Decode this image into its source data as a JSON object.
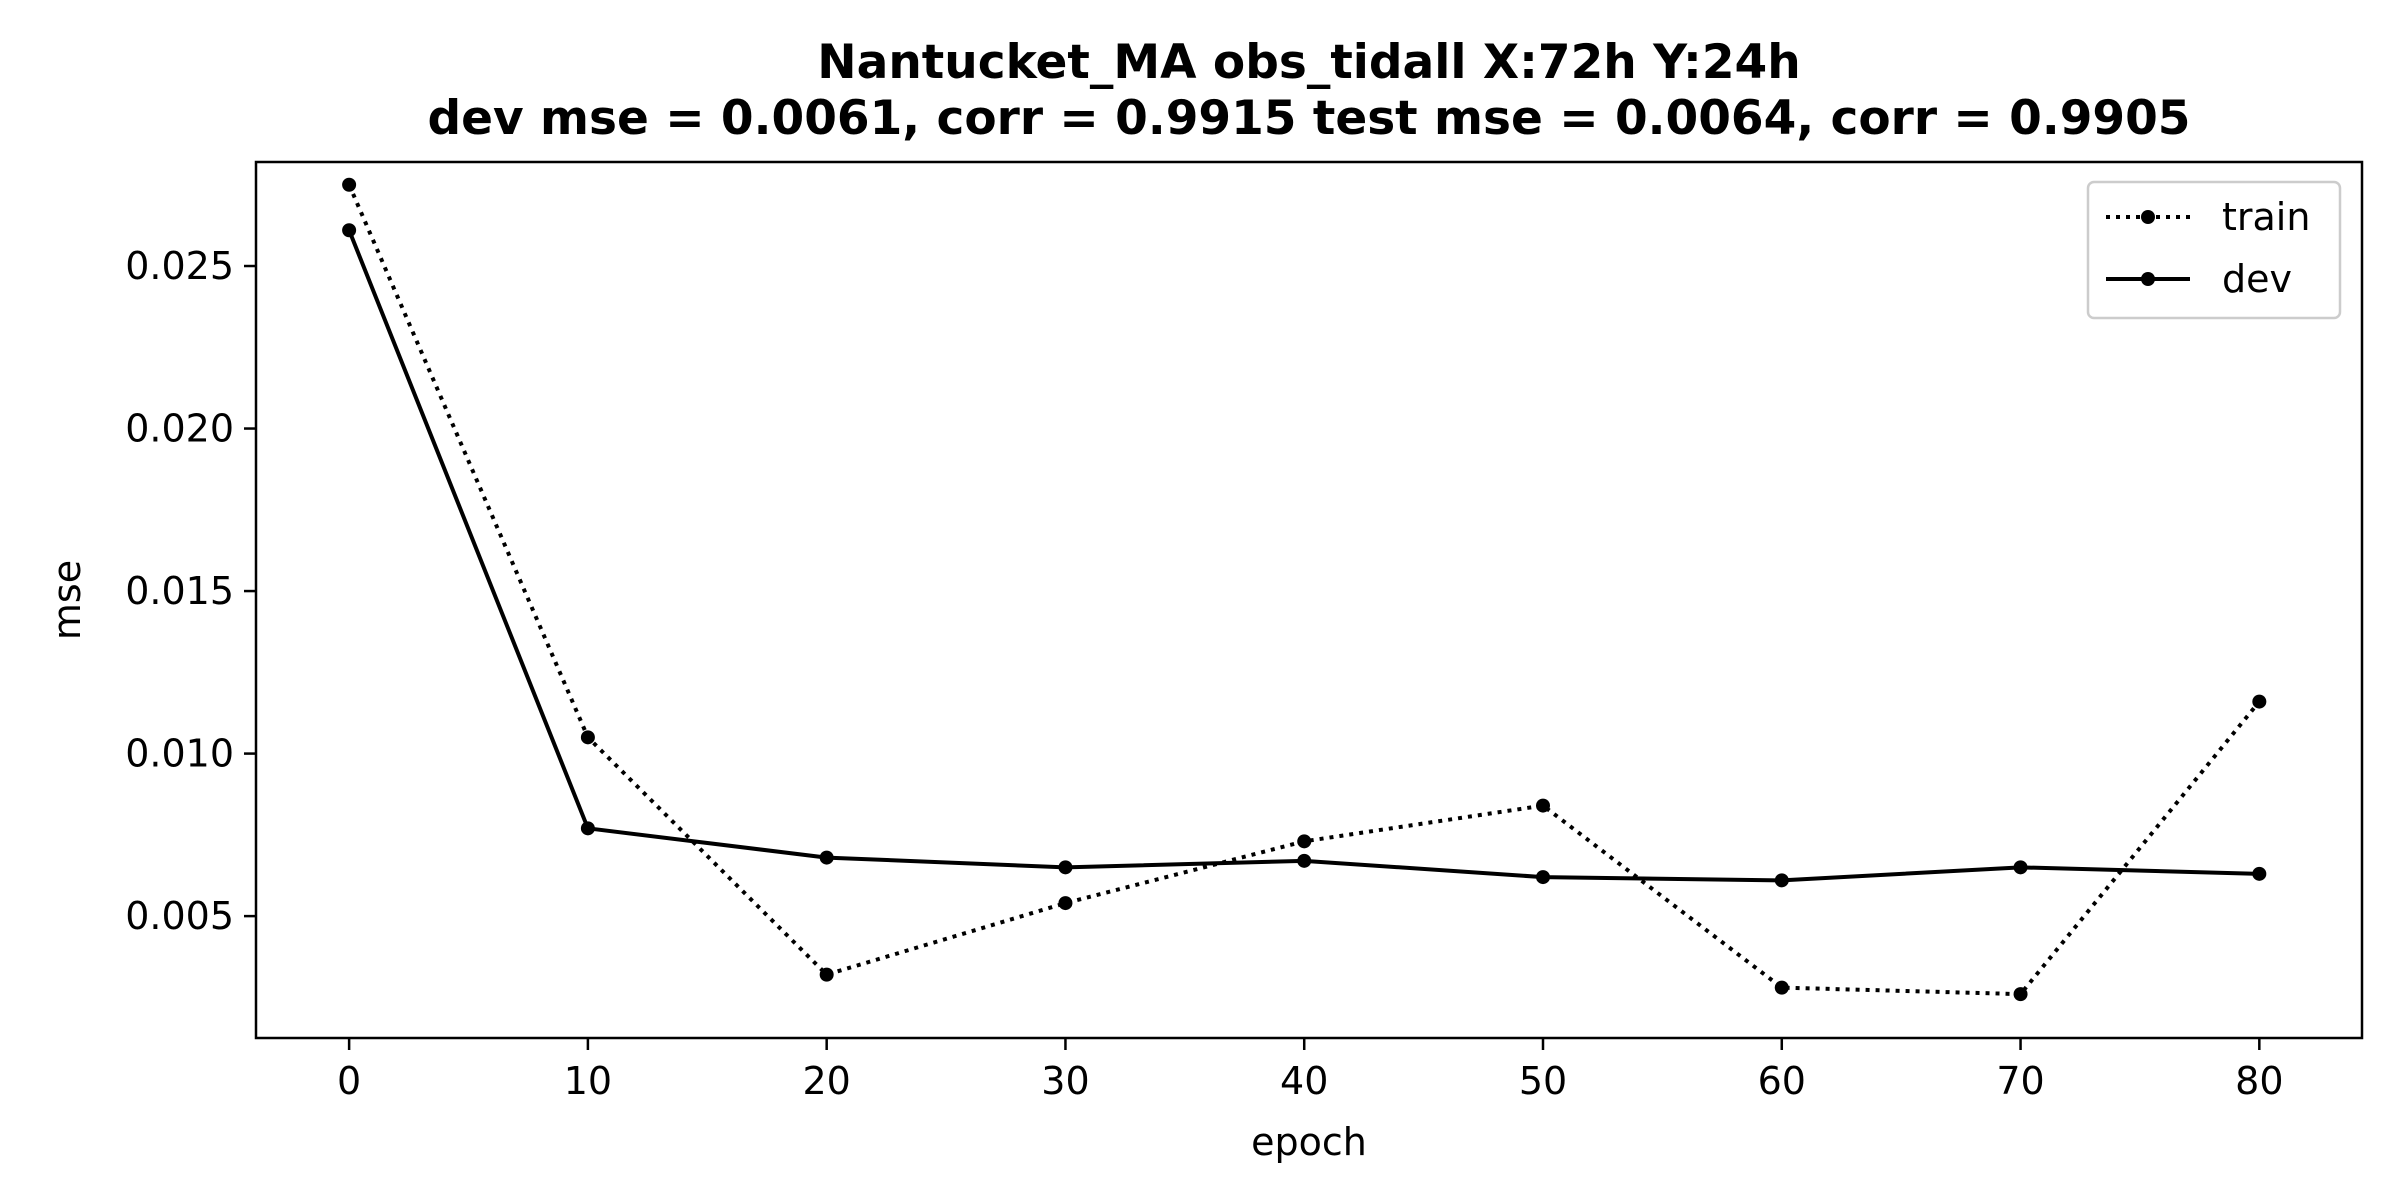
{
  "chart_data": {
    "type": "line",
    "title": "Nantucket_MA   obs_tidall   X:72h   Y:24h",
    "subtitle": "dev mse = 0.0061, corr = 0.9915   test mse = 0.0064, corr = 0.9905",
    "xlabel": "epoch",
    "ylabel": "mse",
    "x": [
      0,
      10,
      20,
      30,
      40,
      50,
      60,
      70,
      80
    ],
    "xlim": [
      -3.9,
      84.3
    ],
    "ylim": [
      0.00125,
      0.0282
    ],
    "xticks": [
      0,
      10,
      20,
      30,
      40,
      50,
      60,
      70,
      80
    ],
    "xtick_labels": [
      "0",
      "10",
      "20",
      "30",
      "40",
      "50",
      "60",
      "70",
      "80"
    ],
    "yticks": [
      0.005,
      0.01,
      0.015,
      0.02,
      0.025
    ],
    "ytick_labels": [
      "0.005",
      "0.010",
      "0.015",
      "0.020",
      "0.025"
    ],
    "grid": false,
    "legend_position": "top-right",
    "series": [
      {
        "name": "train",
        "line_style": "dotted",
        "color": "#000000",
        "values": [
          0.0275,
          0.0105,
          0.0032,
          0.0054,
          0.0073,
          0.0084,
          0.0028,
          0.0026,
          0.0116
        ]
      },
      {
        "name": "dev",
        "line_style": "solid",
        "color": "#000000",
        "values": [
          0.0261,
          0.0077,
          0.0068,
          0.0065,
          0.0067,
          0.0062,
          0.0061,
          0.0065,
          0.0063
        ]
      }
    ]
  }
}
